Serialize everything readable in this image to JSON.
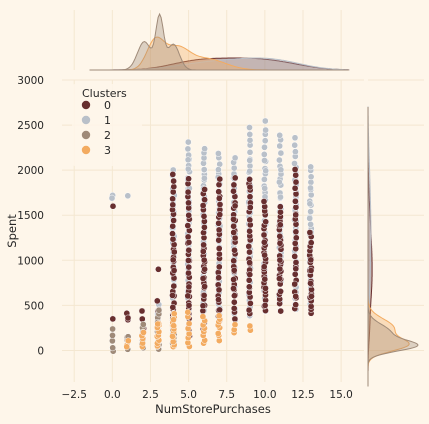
{
  "colors": {
    "page_bg": "#FEF6EA",
    "grid": "#F4E7D1",
    "text": "#262626",
    "cluster_0": "#682F2F",
    "cluster_1": "#B9C0C9",
    "cluster_2": "#9F8A78",
    "cluster_3": "#F3AB60"
  },
  "chart_data": {
    "type": "scatter",
    "kind": "jointplot",
    "xlabel": "NumStorePurchases",
    "ylabel": "Spent",
    "xlim": [
      -3.3,
      16.5
    ],
    "ylim": [
      -350,
      3000
    ],
    "xticks": [
      "−2.5",
      "0.0",
      "2.5",
      "5.0",
      "7.5",
      "10.0",
      "12.5",
      "15.0"
    ],
    "xtick_values": [
      -2.5,
      0,
      2.5,
      5,
      7.5,
      10,
      12.5,
      15
    ],
    "yticks": [
      "0",
      "500",
      "1000",
      "1500",
      "2000",
      "2500",
      "3000"
    ],
    "ytick_values": [
      0,
      500,
      1000,
      1500,
      2000,
      2500,
      3000
    ],
    "grid": true,
    "legend": {
      "title": "Clusters",
      "placement": "top-left",
      "entries": [
        "0",
        "1",
        "2",
        "3"
      ]
    },
    "series": [
      {
        "name": "0",
        "x_values": [
          0,
          0,
          1,
          1,
          2,
          2,
          3,
          3,
          3,
          4,
          4,
          4,
          5,
          5,
          5,
          6,
          6,
          6,
          7,
          7,
          7,
          8,
          8,
          8,
          9,
          9,
          9,
          10,
          10,
          10,
          11,
          11,
          11,
          12,
          12,
          12,
          13,
          13,
          13
        ],
        "y_ranges": [
          [
            330,
            370
          ],
          [
            1580,
            1620
          ],
          [
            340,
            420
          ],
          [
            340,
            380
          ],
          [
            100,
            450
          ],
          [
            250,
            350
          ],
          [
            50,
            550
          ],
          [
            880,
            920
          ],
          [
            300,
            450
          ],
          [
            80,
            1950
          ],
          [
            200,
            600
          ],
          [
            900,
            1100
          ],
          [
            150,
            1900
          ],
          [
            400,
            700
          ],
          [
            1000,
            1200
          ],
          [
            250,
            1800
          ],
          [
            500,
            800
          ],
          [
            900,
            1100
          ],
          [
            250,
            1900
          ],
          [
            450,
            800
          ],
          [
            1500,
            1700
          ],
          [
            350,
            1900
          ],
          [
            600,
            900
          ],
          [
            1300,
            1600
          ],
          [
            400,
            1900
          ],
          [
            700,
            1100
          ],
          [
            1600,
            1800
          ],
          [
            450,
            1650
          ],
          [
            800,
            1200
          ],
          [
            500,
            700
          ],
          [
            450,
            1600
          ],
          [
            800,
            1000
          ],
          [
            1200,
            1400
          ],
          [
            450,
            2000
          ],
          [
            600,
            900
          ],
          [
            1500,
            1800
          ],
          [
            400,
            1300
          ],
          [
            600,
            900
          ],
          [
            1000,
            1200
          ]
        ],
        "counts": [
          1,
          1,
          2,
          1,
          4,
          2,
          6,
          1,
          2,
          30,
          4,
          3,
          28,
          4,
          3,
          26,
          4,
          3,
          25,
          4,
          2,
          25,
          4,
          3,
          25,
          4,
          2,
          24,
          4,
          2,
          22,
          3,
          2,
          24,
          3,
          3,
          20,
          3,
          2
        ]
      },
      {
        "name": "1",
        "x_values": [
          0,
          0,
          1,
          2,
          3,
          3,
          4,
          4,
          5,
          5,
          6,
          6,
          7,
          7,
          8,
          8,
          9,
          9,
          10,
          10,
          11,
          11,
          12,
          12,
          13,
          13
        ],
        "y_ranges": [
          [
            1700,
            1740
          ],
          [
            1680,
            1700
          ],
          [
            1700,
            1730
          ],
          [
            20,
            120
          ],
          [
            150,
            500
          ],
          [
            50,
            200
          ],
          [
            400,
            2000
          ],
          [
            1000,
            1800
          ],
          [
            450,
            2300
          ],
          [
            1200,
            2100
          ],
          [
            450,
            2250
          ],
          [
            1100,
            2000
          ],
          [
            400,
            2200
          ],
          [
            1300,
            2000
          ],
          [
            350,
            2150
          ],
          [
            1000,
            1900
          ],
          [
            400,
            2480
          ],
          [
            1100,
            2100
          ],
          [
            450,
            2530
          ],
          [
            1200,
            2100
          ],
          [
            450,
            2400
          ],
          [
            1000,
            2000
          ],
          [
            450,
            2350
          ],
          [
            1100,
            1900
          ],
          [
            450,
            2050
          ],
          [
            1000,
            1800
          ]
        ],
        "counts": [
          1,
          1,
          1,
          3,
          5,
          3,
          26,
          10,
          30,
          10,
          30,
          10,
          30,
          10,
          30,
          10,
          30,
          10,
          30,
          10,
          28,
          8,
          30,
          8,
          26,
          6
        ]
      },
      {
        "name": "2",
        "x_values": [
          0,
          0,
          1,
          1,
          2,
          2,
          3,
          3,
          4,
          4
        ],
        "y_ranges": [
          [
            -20,
            20
          ],
          [
            100,
            240
          ],
          [
            20,
            150
          ],
          [
            100,
            140
          ],
          [
            20,
            300
          ],
          [
            80,
            200
          ],
          [
            20,
            450
          ],
          [
            100,
            300
          ],
          [
            50,
            400
          ],
          [
            150,
            350
          ]
        ],
        "counts": [
          2,
          3,
          3,
          2,
          6,
          4,
          10,
          6,
          12,
          6
        ]
      },
      {
        "name": "3",
        "x_values": [
          1,
          1,
          2,
          3,
          3,
          4,
          4,
          5,
          6,
          7,
          8,
          9
        ],
        "y_ranges": [
          [
            60,
            100
          ],
          [
            20,
            60
          ],
          [
            40,
            200
          ],
          [
            30,
            300
          ],
          [
            200,
            300
          ],
          [
            30,
            400
          ],
          [
            100,
            350
          ],
          [
            30,
            420
          ],
          [
            70,
            380
          ],
          [
            120,
            400
          ],
          [
            200,
            280
          ],
          [
            220,
            280
          ]
        ],
        "counts": [
          2,
          1,
          5,
          10,
          3,
          10,
          5,
          8,
          8,
          8,
          3,
          2
        ]
      }
    ],
    "marginal_x_kde": {
      "0": {
        "centers": [
          5,
          7,
          9,
          11
        ],
        "sigmas": [
          1.6,
          1.8,
          1.8,
          1.8
        ],
        "weights": [
          1.0,
          1.1,
          1.0,
          1.0
        ],
        "peak": 0.12
      },
      "1": {
        "centers": [
          6,
          9,
          11
        ],
        "sigmas": [
          2.0,
          2.0,
          1.8
        ],
        "weights": [
          1.0,
          1.2,
          1.0
        ],
        "peak": 0.12
      },
      "2": {
        "centers": [
          2.1,
          3.1,
          4.0
        ],
        "sigmas": [
          0.45,
          0.25,
          0.4
        ],
        "weights": [
          0.55,
          1.0,
          0.5
        ],
        "peak": 0.56
      },
      "3": {
        "centers": [
          2.8,
          4.2,
          6.2
        ],
        "sigmas": [
          0.55,
          0.8,
          1.2
        ],
        "weights": [
          1.0,
          0.75,
          0.4
        ],
        "peak": 0.33
      }
    },
    "marginal_y_kde": {
      "0": {
        "centers": [
          300,
          700,
          1000,
          1300,
          1600
        ],
        "sigmas": [
          200,
          200,
          200,
          220,
          300
        ],
        "weights": [
          0.6,
          1.0,
          0.9,
          0.6,
          0.35
        ],
        "peak": 0.07
      },
      "1": {
        "centers": [
          700,
          1100,
          1500,
          2000
        ],
        "sigmas": [
          250,
          280,
          300,
          300
        ],
        "weights": [
          0.6,
          0.9,
          1.0,
          0.6
        ],
        "peak": 0.05
      },
      "2": {
        "centers": [
          50,
          200
        ],
        "sigmas": [
          60,
          90
        ],
        "weights": [
          1.0,
          0.5
        ],
        "peak": 0.85
      },
      "3": {
        "centers": [
          60,
          250
        ],
        "sigmas": [
          70,
          100
        ],
        "weights": [
          1.0,
          0.7
        ],
        "peak": 0.7
      }
    }
  }
}
